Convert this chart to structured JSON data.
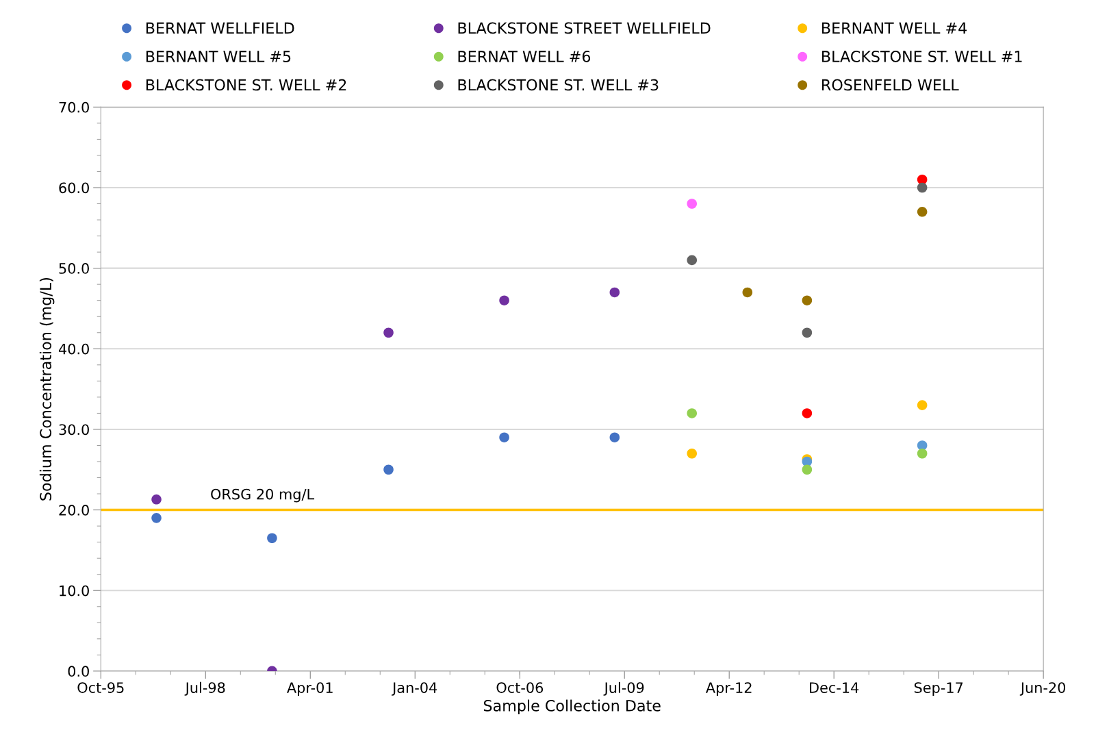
{
  "chart_data": {
    "type": "scatter",
    "xlabel": "Sample Collection Date",
    "ylabel": "Sodium Concentration (mg/L)",
    "xlim": [
      "1995-10-28",
      "2020-06-18"
    ],
    "xticks": [
      {
        "value": "1995-10-28",
        "label": "Oct-95"
      },
      {
        "value": "1998-07-24",
        "label": "Jul-98"
      },
      {
        "value": "2001-04-19",
        "label": "Apr-01"
      },
      {
        "value": "2004-01-14",
        "label": "Jan-04"
      },
      {
        "value": "2006-10-11",
        "label": "Oct-06"
      },
      {
        "value": "2009-07-06",
        "label": "Jul-09"
      },
      {
        "value": "2012-04-01",
        "label": "Apr-12"
      },
      {
        "value": "2014-12-27",
        "label": "Dec-14"
      },
      {
        "value": "2017-09-22",
        "label": "Sep-17"
      },
      {
        "value": "2020-06-18",
        "label": "Jun-20"
      }
    ],
    "ylim": [
      0,
      70
    ],
    "yticks": [
      {
        "value": 0,
        "label": "0.0"
      },
      {
        "value": 10,
        "label": "10.0"
      },
      {
        "value": 20,
        "label": "20.0"
      },
      {
        "value": 30,
        "label": "30.0"
      },
      {
        "value": 40,
        "label": "40.0"
      },
      {
        "value": 50,
        "label": "50.0"
      },
      {
        "value": 60,
        "label": "60.0"
      },
      {
        "value": 70,
        "label": "70.0"
      }
    ],
    "grid": "y",
    "legend": "top",
    "marker": "circle",
    "ref_lines": [
      {
        "axis": "y",
        "value": 20,
        "label": "ORSG 20 mg/L",
        "color": "#ffc000"
      }
    ],
    "series": [
      {
        "name": "BERNAT WELLFIELD",
        "color": "#4472c4",
        "x": [
          "1997-04-11",
          "2000-04-19",
          "2003-05-06",
          "2006-05-15",
          "2009-04-03"
        ],
        "values": [
          19,
          16.5,
          25,
          29,
          29
        ]
      },
      {
        "name": "BLACKSTONE STREET WELLFIELD",
        "color": "#7030a0",
        "x": [
          "1997-04-11",
          "2000-04-19",
          "2003-05-06",
          "2006-05-15",
          "2009-04-03"
        ],
        "values": [
          21.3,
          0,
          42,
          46,
          47
        ]
      },
      {
        "name": "BERNANT WELL #4",
        "color": "#ffc000",
        "x": [
          "2011-04-11",
          "2014-04-14",
          "2017-04-18"
        ],
        "values": [
          27,
          26.3,
          33
        ]
      },
      {
        "name": "BERNANT WELL #5",
        "color": "#5b9bd5",
        "x": [
          "2014-04-14",
          "2017-04-18"
        ],
        "values": [
          26,
          28
        ]
      },
      {
        "name": "BERNAT WELL #6",
        "color": "#92d050",
        "x": [
          "2011-04-11",
          "2014-04-14",
          "2017-04-18"
        ],
        "values": [
          32,
          25,
          27
        ]
      },
      {
        "name": "BLACKSTONE ST. WELL #1",
        "color": "#ff66ff",
        "x": [
          "2011-04-11"
        ],
        "values": [
          58
        ]
      },
      {
        "name": "BLACKSTONE ST. WELL #2",
        "color": "#ff0000",
        "x": [
          "2014-04-14",
          "2017-04-18"
        ],
        "values": [
          32,
          61
        ]
      },
      {
        "name": "BLACKSTONE ST. WELL #3",
        "color": "#636363",
        "x": [
          "2011-04-11",
          "2014-04-14",
          "2017-04-18"
        ],
        "values": [
          51,
          42,
          60
        ]
      },
      {
        "name": "ROSENFELD WELL",
        "color": "#997300",
        "x": [
          "2012-09-22",
          "2014-04-14",
          "2017-04-18"
        ],
        "values": [
          47,
          46,
          57
        ]
      }
    ]
  }
}
